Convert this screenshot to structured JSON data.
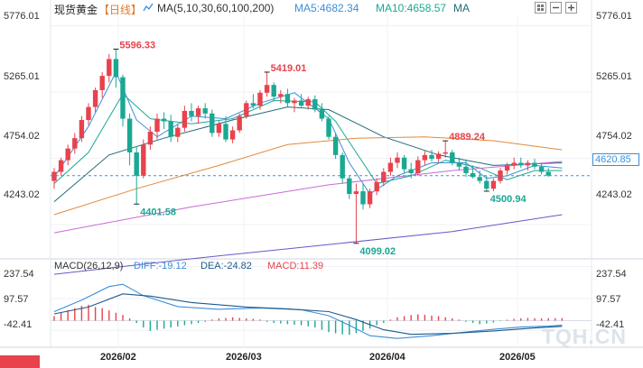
{
  "header": {
    "instrument": "现货黄金",
    "period": "【日线】",
    "ma_label": "MA(5,10,30,60,100,200)",
    "ma5": "MA5:4682.34",
    "ma10": "MA10:4658.57",
    "ma": "MA"
  },
  "macd_header": {
    "label": "MACD(26,12,9)",
    "diff": "DIFF:-19.12",
    "dea": "DEA:-24.82",
    "macd": "MACD:11.39"
  },
  "price_axis": [
    "5776.01",
    "5265.01",
    "4754.02",
    "4243.02"
  ],
  "macd_axis": [
    "237.54",
    "97.57",
    "-42.41"
  ],
  "current_price": "4620.85",
  "time_axis": [
    "2026/02",
    "2026/03",
    "2026/04",
    "2026/05"
  ],
  "annotations": [
    "5596.33",
    "5419.01",
    "4889.24",
    "4401.58",
    "4099.02",
    "4500.94"
  ],
  "watermark": "TQH.CN",
  "colors": {
    "up": "#e8424d",
    "down": "#1aa893",
    "ma5": "#3b8fd9",
    "ma10": "#1aa893",
    "ma30": "#1f6b74",
    "ma60": "#e08a3c",
    "ma100": "#c96bd6",
    "ma200": "#6a58c8",
    "dea": "#1e5a8c",
    "current": "#3b8fd9"
  },
  "chart_data": [
    {
      "type": "candlestick",
      "title": "现货黄金 【日线】",
      "ylim": [
        4000,
        5850
      ],
      "y_ticks": [
        5776.01,
        5265.01,
        4754.02,
        4243.02
      ],
      "x_ticks": [
        "2026/02",
        "2026/03",
        "2026/04",
        "2026/05"
      ],
      "candles": [
        [
          4580,
          4680,
          4520,
          4650
        ],
        [
          4650,
          4760,
          4620,
          4740
        ],
        [
          4740,
          4860,
          4700,
          4830
        ],
        [
          4830,
          4950,
          4790,
          4910
        ],
        [
          4910,
          5080,
          4880,
          5050
        ],
        [
          5050,
          5180,
          5010,
          5150
        ],
        [
          5150,
          5300,
          5110,
          5280
        ],
        [
          5280,
          5420,
          5220,
          5390
        ],
        [
          5390,
          5560,
          5340,
          5520
        ],
        [
          5520,
          5596.33,
          5300,
          5380
        ],
        [
          5380,
          5400,
          5000,
          5060
        ],
        [
          5060,
          5100,
          4700,
          4800
        ],
        [
          4800,
          4850,
          4401.58,
          4620
        ],
        [
          4620,
          4900,
          4600,
          4860
        ],
        [
          4860,
          5000,
          4820,
          4960
        ],
        [
          4960,
          5100,
          4900,
          5060
        ],
        [
          5060,
          5110,
          4980,
          5040
        ],
        [
          5040,
          5090,
          4880,
          4920
        ],
        [
          4920,
          5020,
          4880,
          4990
        ],
        [
          4990,
          5160,
          4960,
          5120
        ],
        [
          5120,
          5180,
          5040,
          5080
        ],
        [
          5080,
          5160,
          5020,
          5140
        ],
        [
          5140,
          5180,
          5060,
          5100
        ],
        [
          5100,
          5130,
          4920,
          4950
        ],
        [
          4950,
          5040,
          4920,
          5020
        ],
        [
          5020,
          5080,
          4880,
          4900
        ],
        [
          4900,
          5000,
          4870,
          4970
        ],
        [
          4970,
          5100,
          4950,
          5080
        ],
        [
          5080,
          5200,
          5060,
          5180
        ],
        [
          5180,
          5250,
          5140,
          5160
        ],
        [
          5160,
          5280,
          5130,
          5260
        ],
        [
          5260,
          5419.01,
          5230,
          5320
        ],
        [
          5320,
          5340,
          5200,
          5230
        ],
        [
          5230,
          5280,
          5180,
          5250
        ],
        [
          5250,
          5290,
          5150,
          5180
        ],
        [
          5180,
          5220,
          5110,
          5200
        ],
        [
          5200,
          5250,
          5150,
          5160
        ],
        [
          5160,
          5230,
          5130,
          5210
        ],
        [
          5210,
          5240,
          5110,
          5130
        ],
        [
          5130,
          5180,
          5040,
          5060
        ],
        [
          5060,
          5080,
          4900,
          4920
        ],
        [
          4920,
          4950,
          4750,
          4780
        ],
        [
          4780,
          4800,
          4560,
          4600
        ],
        [
          4600,
          4620,
          4440,
          4480
        ],
        [
          4480,
          4560,
          4099.02,
          4500
        ],
        [
          4500,
          4560,
          4360,
          4400
        ],
        [
          4400,
          4520,
          4370,
          4500
        ],
        [
          4500,
          4600,
          4470,
          4570
        ],
        [
          4570,
          4680,
          4540,
          4650
        ],
        [
          4650,
          4760,
          4620,
          4720
        ],
        [
          4720,
          4800,
          4680,
          4760
        ],
        [
          4760,
          4780,
          4640,
          4670
        ],
        [
          4670,
          4720,
          4600,
          4640
        ],
        [
          4640,
          4770,
          4620,
          4740
        ],
        [
          4740,
          4810,
          4700,
          4780
        ],
        [
          4780,
          4820,
          4730,
          4750
        ],
        [
          4750,
          4810,
          4720,
          4790
        ],
        [
          4790,
          4889.24,
          4760,
          4800
        ],
        [
          4800,
          4820,
          4700,
          4720
        ],
        [
          4720,
          4760,
          4660,
          4690
        ],
        [
          4690,
          4740,
          4610,
          4640
        ],
        [
          4640,
          4700,
          4600,
          4610
        ],
        [
          4610,
          4660,
          4560,
          4580
        ],
        [
          4580,
          4620,
          4500.94,
          4520
        ],
        [
          4520,
          4600,
          4500,
          4580
        ],
        [
          4580,
          4680,
          4560,
          4660
        ],
        [
          4660,
          4720,
          4630,
          4700
        ],
        [
          4700,
          4760,
          4670,
          4720
        ],
        [
          4720,
          4760,
          4680,
          4700
        ],
        [
          4700,
          4740,
          4660,
          4720
        ],
        [
          4720,
          4750,
          4670,
          4690
        ],
        [
          4690,
          4720,
          4630,
          4650
        ],
        [
          4650,
          4680,
          4610,
          4620.85
        ]
      ],
      "ma": [
        {
          "name": "MA5",
          "values": [
            [
              0,
              4610
            ],
            [
              5,
              5000
            ],
            [
              9,
              5420
            ],
            [
              12,
              5050
            ],
            [
              15,
              4920
            ],
            [
              20,
              5080
            ],
            [
              25,
              5060
            ],
            [
              30,
              5180
            ],
            [
              35,
              5260
            ],
            [
              40,
              5060
            ],
            [
              43,
              4720
            ],
            [
              46,
              4480
            ],
            [
              50,
              4620
            ],
            [
              55,
              4720
            ],
            [
              60,
              4720
            ],
            [
              63,
              4600
            ],
            [
              66,
              4620
            ],
            [
              70,
              4700
            ],
            [
              74,
              4680
            ]
          ]
        },
        {
          "name": "MA10",
          "values": [
            [
              0,
              4560
            ],
            [
              5,
              4800
            ],
            [
              10,
              5250
            ],
            [
              14,
              5060
            ],
            [
              20,
              5020
            ],
            [
              26,
              5060
            ],
            [
              32,
              5200
            ],
            [
              38,
              5190
            ],
            [
              41,
              5040
            ],
            [
              44,
              4800
            ],
            [
              47,
              4560
            ],
            [
              52,
              4620
            ],
            [
              57,
              4740
            ],
            [
              62,
              4680
            ],
            [
              66,
              4590
            ],
            [
              70,
              4660
            ],
            [
              74,
              4660
            ]
          ]
        },
        {
          "name": "MA30",
          "values": [
            [
              0,
              4420
            ],
            [
              8,
              4780
            ],
            [
              16,
              4910
            ],
            [
              26,
              5050
            ],
            [
              34,
              5150
            ],
            [
              40,
              5130
            ],
            [
              48,
              4920
            ],
            [
              56,
              4780
            ],
            [
              64,
              4700
            ],
            [
              74,
              4720
            ]
          ]
        },
        {
          "name": "MA60",
          "values": [
            [
              0,
              4320
            ],
            [
              12,
              4520
            ],
            [
              24,
              4700
            ],
            [
              34,
              4860
            ],
            [
              44,
              4910
            ],
            [
              54,
              4920
            ],
            [
              64,
              4890
            ],
            [
              74,
              4820
            ]
          ]
        },
        {
          "name": "MA100",
          "values": [
            [
              0,
              4180
            ],
            [
              20,
              4380
            ],
            [
              40,
              4550
            ],
            [
              58,
              4660
            ],
            [
              74,
              4730
            ]
          ]
        },
        {
          "name": "MA200",
          "values": [
            [
              0,
              3860
            ],
            [
              20,
              3980
            ],
            [
              40,
              4090
            ],
            [
              58,
              4190
            ],
            [
              74,
              4320
            ]
          ]
        }
      ]
    },
    {
      "type": "macd",
      "title": "MACD(26,12,9)",
      "ylim": [
        -105,
        260
      ],
      "y_ticks": [
        237.54,
        97.57,
        -42.41
      ],
      "diff": [
        [
          0,
          40
        ],
        [
          4,
          90
        ],
        [
          8,
          150
        ],
        [
          10,
          160
        ],
        [
          13,
          110
        ],
        [
          18,
          62
        ],
        [
          24,
          50
        ],
        [
          30,
          56
        ],
        [
          36,
          48
        ],
        [
          40,
          22
        ],
        [
          43,
          -20
        ],
        [
          46,
          -66
        ],
        [
          50,
          -78
        ],
        [
          55,
          -66
        ],
        [
          60,
          -50
        ],
        [
          64,
          -38
        ],
        [
          68,
          -28
        ],
        [
          72,
          -24
        ],
        [
          74,
          -19.12
        ]
      ],
      "dea": [
        [
          0,
          30
        ],
        [
          5,
          60
        ],
        [
          10,
          118
        ],
        [
          14,
          108
        ],
        [
          20,
          80
        ],
        [
          28,
          60
        ],
        [
          34,
          52
        ],
        [
          40,
          40
        ],
        [
          44,
          5
        ],
        [
          48,
          -40
        ],
        [
          52,
          -60
        ],
        [
          58,
          -56
        ],
        [
          64,
          -45
        ],
        [
          70,
          -32
        ],
        [
          74,
          -24.82
        ]
      ],
      "macd": [
        [
          0,
          20
        ],
        [
          1,
          35
        ],
        [
          2,
          45
        ],
        [
          3,
          55
        ],
        [
          4,
          65
        ],
        [
          5,
          70
        ],
        [
          6,
          60
        ],
        [
          7,
          55
        ],
        [
          8,
          45
        ],
        [
          9,
          35
        ],
        [
          10,
          25
        ],
        [
          11,
          10
        ],
        [
          12,
          -10
        ],
        [
          13,
          -30
        ],
        [
          14,
          -45
        ],
        [
          15,
          -40
        ],
        [
          16,
          -35
        ],
        [
          17,
          -30
        ],
        [
          18,
          -25
        ],
        [
          19,
          -20
        ],
        [
          20,
          -15
        ],
        [
          21,
          -10
        ],
        [
          22,
          -5
        ],
        [
          23,
          5
        ],
        [
          24,
          10
        ],
        [
          25,
          12
        ],
        [
          26,
          15
        ],
        [
          27,
          12
        ],
        [
          28,
          10
        ],
        [
          29,
          8
        ],
        [
          30,
          5
        ],
        [
          31,
          -5
        ],
        [
          32,
          -10
        ],
        [
          33,
          -12
        ],
        [
          34,
          -15
        ],
        [
          35,
          -18
        ],
        [
          36,
          -20
        ],
        [
          37,
          -25
        ],
        [
          38,
          -30
        ],
        [
          39,
          -40
        ],
        [
          40,
          -50
        ],
        [
          41,
          -55
        ],
        [
          42,
          -60
        ],
        [
          43,
          -62
        ],
        [
          44,
          -55
        ],
        [
          45,
          -45
        ],
        [
          46,
          -35
        ],
        [
          47,
          -20
        ],
        [
          48,
          -10
        ],
        [
          49,
          5
        ],
        [
          50,
          15
        ],
        [
          51,
          20
        ],
        [
          52,
          25
        ],
        [
          53,
          28
        ],
        [
          54,
          26
        ],
        [
          55,
          22
        ],
        [
          56,
          20
        ],
        [
          57,
          15
        ],
        [
          58,
          10
        ],
        [
          59,
          5
        ],
        [
          60,
          -5
        ],
        [
          61,
          -10
        ],
        [
          62,
          -15
        ],
        [
          63,
          -12
        ],
        [
          64,
          -8
        ],
        [
          65,
          -2
        ],
        [
          66,
          4
        ],
        [
          67,
          8
        ],
        [
          68,
          10
        ],
        [
          69,
          12
        ],
        [
          70,
          11
        ],
        [
          71,
          10
        ],
        [
          72,
          11
        ],
        [
          73,
          11
        ],
        [
          74,
          11.39
        ]
      ]
    }
  ]
}
